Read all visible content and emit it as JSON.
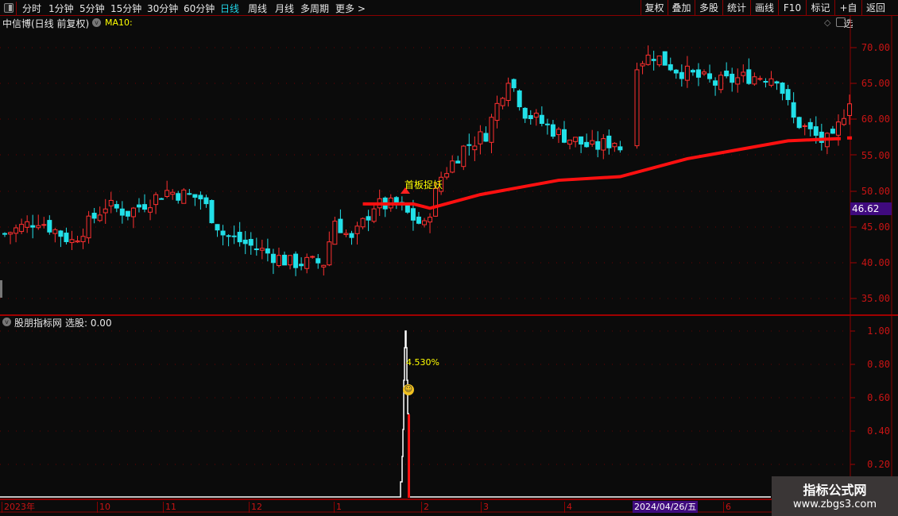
{
  "toolbar": {
    "periods": [
      "分时",
      "1分钟",
      "5分钟",
      "15分钟",
      "30分钟",
      "60分钟",
      "日线",
      "周线",
      "月线",
      "多周期",
      "更多 >"
    ],
    "active_period": "日线",
    "buttons": [
      "复权",
      "叠加",
      "多股",
      "统计",
      "画线",
      "F10",
      "标记",
      "+自选",
      "返回"
    ]
  },
  "main_chart": {
    "title": "中信博(日线 前复权)",
    "indicator": "MA10:",
    "y_ticks": [
      "70.00",
      "65.00",
      "60.00",
      "55.00",
      "50.00",
      "45.00",
      "40.00",
      "35.00"
    ],
    "current_price": "46.62",
    "signal_text": "首板捉妖",
    "colors": {
      "up": "#ff3030",
      "down": "#22e0e8",
      "ma": "#ff1010",
      "price_tag": "#3f0a7e"
    }
  },
  "chart_data": {
    "type": "candlestick",
    "close_keypoints": [
      [
        0,
        44
      ],
      [
        6,
        46
      ],
      [
        12,
        43
      ],
      [
        18,
        48
      ],
      [
        22,
        47
      ],
      [
        29,
        50
      ],
      [
        35,
        49
      ],
      [
        39,
        44
      ],
      [
        45,
        42
      ],
      [
        51,
        40
      ],
      [
        57,
        40
      ],
      [
        59,
        46
      ],
      [
        62,
        43
      ],
      [
        66,
        48
      ],
      [
        70,
        48
      ],
      [
        75,
        45
      ],
      [
        78,
        52
      ],
      [
        82,
        56
      ],
      [
        86,
        58
      ],
      [
        90,
        66
      ],
      [
        93,
        61
      ],
      [
        99,
        58
      ],
      [
        105,
        56
      ],
      [
        109,
        57
      ],
      [
        111,
        55
      ],
      [
        113,
        68
      ],
      [
        116,
        69
      ],
      [
        120,
        67
      ],
      [
        127,
        65
      ],
      [
        133,
        66
      ],
      [
        138,
        66
      ],
      [
        141,
        60
      ],
      [
        146,
        57
      ],
      [
        148,
        57
      ],
      [
        151,
        63
      ]
    ],
    "ma10": [
      [
        64,
        48.2
      ],
      [
        73,
        48.2
      ],
      [
        76,
        47.6
      ],
      [
        85,
        49.5
      ],
      [
        99,
        51.5
      ],
      [
        110,
        52
      ],
      [
        122,
        54.5
      ],
      [
        140,
        57
      ],
      [
        149,
        57.3
      ],
      [
        151,
        57.4
      ]
    ],
    "y_range": [
      33,
      72
    ]
  },
  "sub_chart": {
    "title": "股朋指标网",
    "value_label": "选股: 0.00",
    "y_ticks": [
      "1.00",
      "0.80",
      "0.60",
      "0.40",
      "0.20"
    ],
    "spike_label": "4.530%",
    "spike_value": 1.0,
    "signal_bar_value": 0.5
  },
  "date_axis": {
    "labels": [
      "2023年",
      "10",
      "11",
      "12",
      "1",
      "2",
      "3",
      "4",
      "6"
    ],
    "highlight": "2024/04/26/五"
  },
  "watermark": {
    "title": "指标公式网",
    "url": "www.zbgs3.com"
  }
}
